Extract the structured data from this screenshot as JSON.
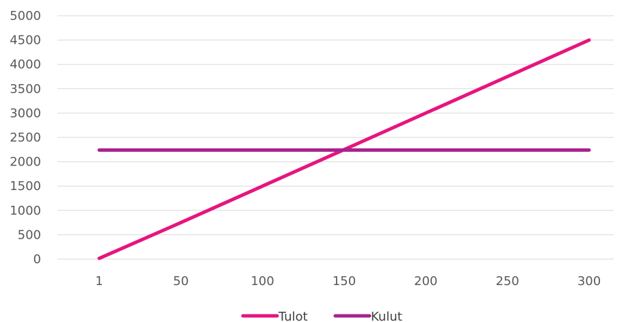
{
  "chart_data": {
    "type": "line",
    "title": "",
    "xlabel": "",
    "ylabel": "",
    "categories": [
      "1",
      "50",
      "100",
      "150",
      "200",
      "250",
      "300"
    ],
    "ylim": [
      0,
      5000
    ],
    "yticks": [
      0,
      500,
      1000,
      1500,
      2000,
      2500,
      3000,
      3500,
      4000,
      4500,
      5000
    ],
    "grid": true,
    "legend_position": "bottom",
    "series": [
      {
        "name": "Tulot",
        "color": "#e6157f",
        "values": [
          15,
          750,
          1500,
          2250,
          3000,
          3750,
          4500
        ]
      },
      {
        "name": "Kulut",
        "color": "#a8238f",
        "values": [
          2240,
          2240,
          2240,
          2240,
          2240,
          2240,
          2240
        ]
      }
    ]
  }
}
